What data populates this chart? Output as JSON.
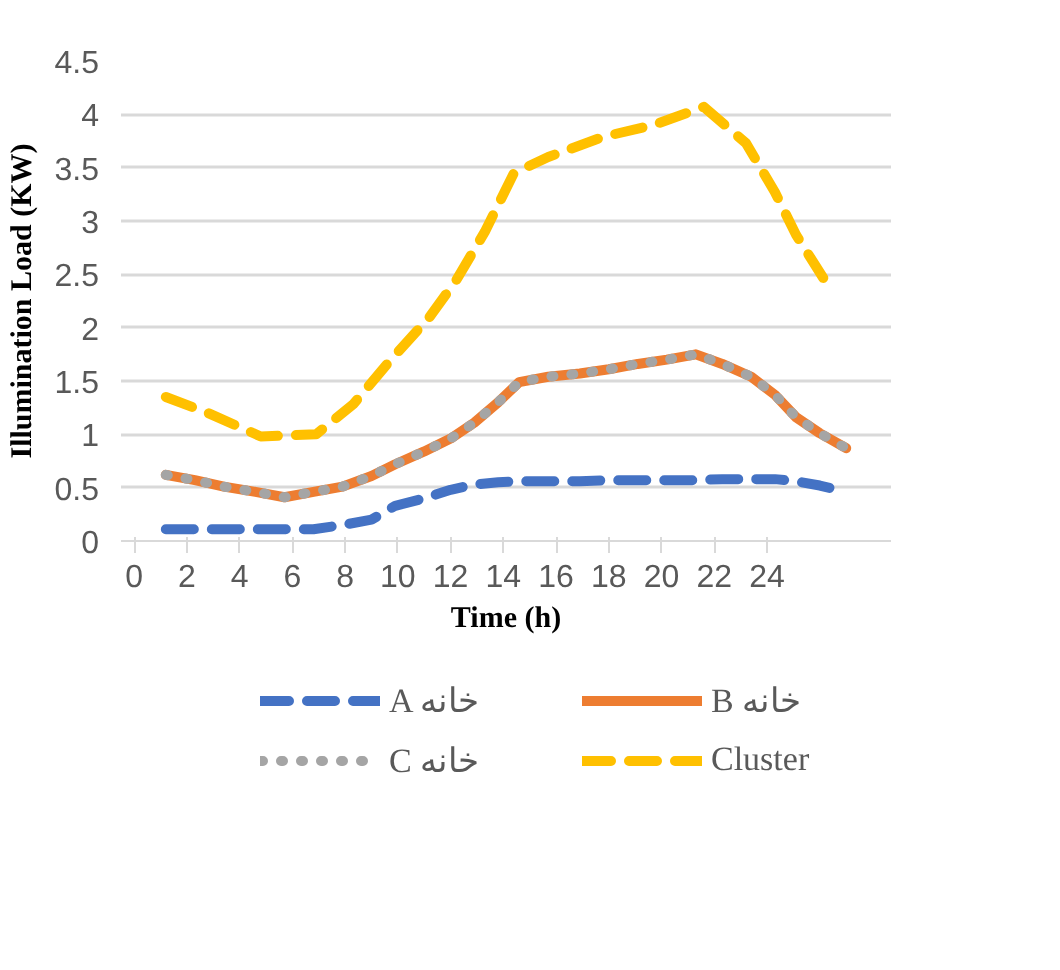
{
  "chart_data": {
    "type": "line",
    "xlabel": "Time (h)",
    "ylabel": "Illumination Load (KW)",
    "xlim": [
      -0.5,
      28.7
    ],
    "xticks": [
      0,
      2,
      4,
      6,
      8,
      10,
      12,
      14,
      16,
      18,
      20,
      22,
      24
    ],
    "ylim": [
      0,
      4.5
    ],
    "yticks": [
      0,
      0.5,
      1,
      1.5,
      2,
      2.5,
      3,
      3.5,
      4,
      4.5
    ],
    "grid": "y",
    "legend": "bottom",
    "marker": "none",
    "series": [
      {
        "name": "A خانه",
        "color": "#4472c4",
        "line_style": "dashed",
        "x": [
          1.2,
          2.3,
          3.4,
          4.6,
          5.7,
          6.8,
          7.9,
          9.0,
          9.9,
          11.0,
          12.0,
          12.9,
          13.8,
          14.6,
          15.7,
          16.9,
          18.0,
          19.1,
          20.2,
          21.3,
          22.3,
          23.4,
          24.3,
          25.1,
          26.0,
          26.5
        ],
        "values": [
          0.11,
          0.11,
          0.11,
          0.11,
          0.11,
          0.11,
          0.15,
          0.2,
          0.33,
          0.4,
          0.48,
          0.53,
          0.55,
          0.56,
          0.56,
          0.56,
          0.57,
          0.57,
          0.57,
          0.57,
          0.58,
          0.58,
          0.58,
          0.56,
          0.52,
          0.49
        ]
      },
      {
        "name": "B خانه",
        "color": "#ed7d31",
        "line_style": "solid",
        "x": [
          1.2,
          2.3,
          3.4,
          4.6,
          5.7,
          6.8,
          7.9,
          9.0,
          9.9,
          11.0,
          12.0,
          12.9,
          13.8,
          14.6,
          15.7,
          16.9,
          18.0,
          19.1,
          20.2,
          21.3,
          22.3,
          23.4,
          24.3,
          25.1,
          26.0,
          27.0
        ],
        "values": [
          0.62,
          0.57,
          0.51,
          0.46,
          0.41,
          0.46,
          0.51,
          0.61,
          0.72,
          0.84,
          0.96,
          1.11,
          1.3,
          1.49,
          1.54,
          1.57,
          1.61,
          1.66,
          1.7,
          1.75,
          1.66,
          1.54,
          1.37,
          1.16,
          1.01,
          0.87
        ]
      },
      {
        "name": "C خانه",
        "color": "#a5a5a5",
        "line_style": "dotted",
        "x": [
          1.2,
          2.3,
          3.4,
          4.6,
          5.7,
          6.8,
          7.9,
          9.0,
          9.9,
          11.0,
          12.0,
          12.9,
          13.8,
          14.6,
          15.7,
          16.9,
          18.0,
          19.1,
          20.2,
          21.3,
          22.3,
          23.4,
          24.3,
          25.1,
          26.0,
          27.0
        ],
        "values": [
          0.62,
          0.57,
          0.51,
          0.46,
          0.41,
          0.46,
          0.51,
          0.61,
          0.72,
          0.84,
          0.96,
          1.11,
          1.3,
          1.49,
          1.54,
          1.57,
          1.61,
          1.66,
          1.7,
          1.75,
          1.66,
          1.54,
          1.37,
          1.16,
          1.01,
          0.87
        ]
      },
      {
        "name": "Cluster",
        "color": "#ffc000",
        "line_style": "dashed",
        "x": [
          1.2,
          2.8,
          4.8,
          6.9,
          8.3,
          9.7,
          11.2,
          12.2,
          13.3,
          14.4,
          15.7,
          17.8,
          19.7,
          21.6,
          23.2,
          24.3,
          25.1,
          26.3
        ],
        "values": [
          1.35,
          1.2,
          0.98,
          1.0,
          1.28,
          1.69,
          2.1,
          2.44,
          2.9,
          3.45,
          3.6,
          3.79,
          3.9,
          4.07,
          3.73,
          3.27,
          2.87,
          2.4
        ]
      }
    ]
  }
}
